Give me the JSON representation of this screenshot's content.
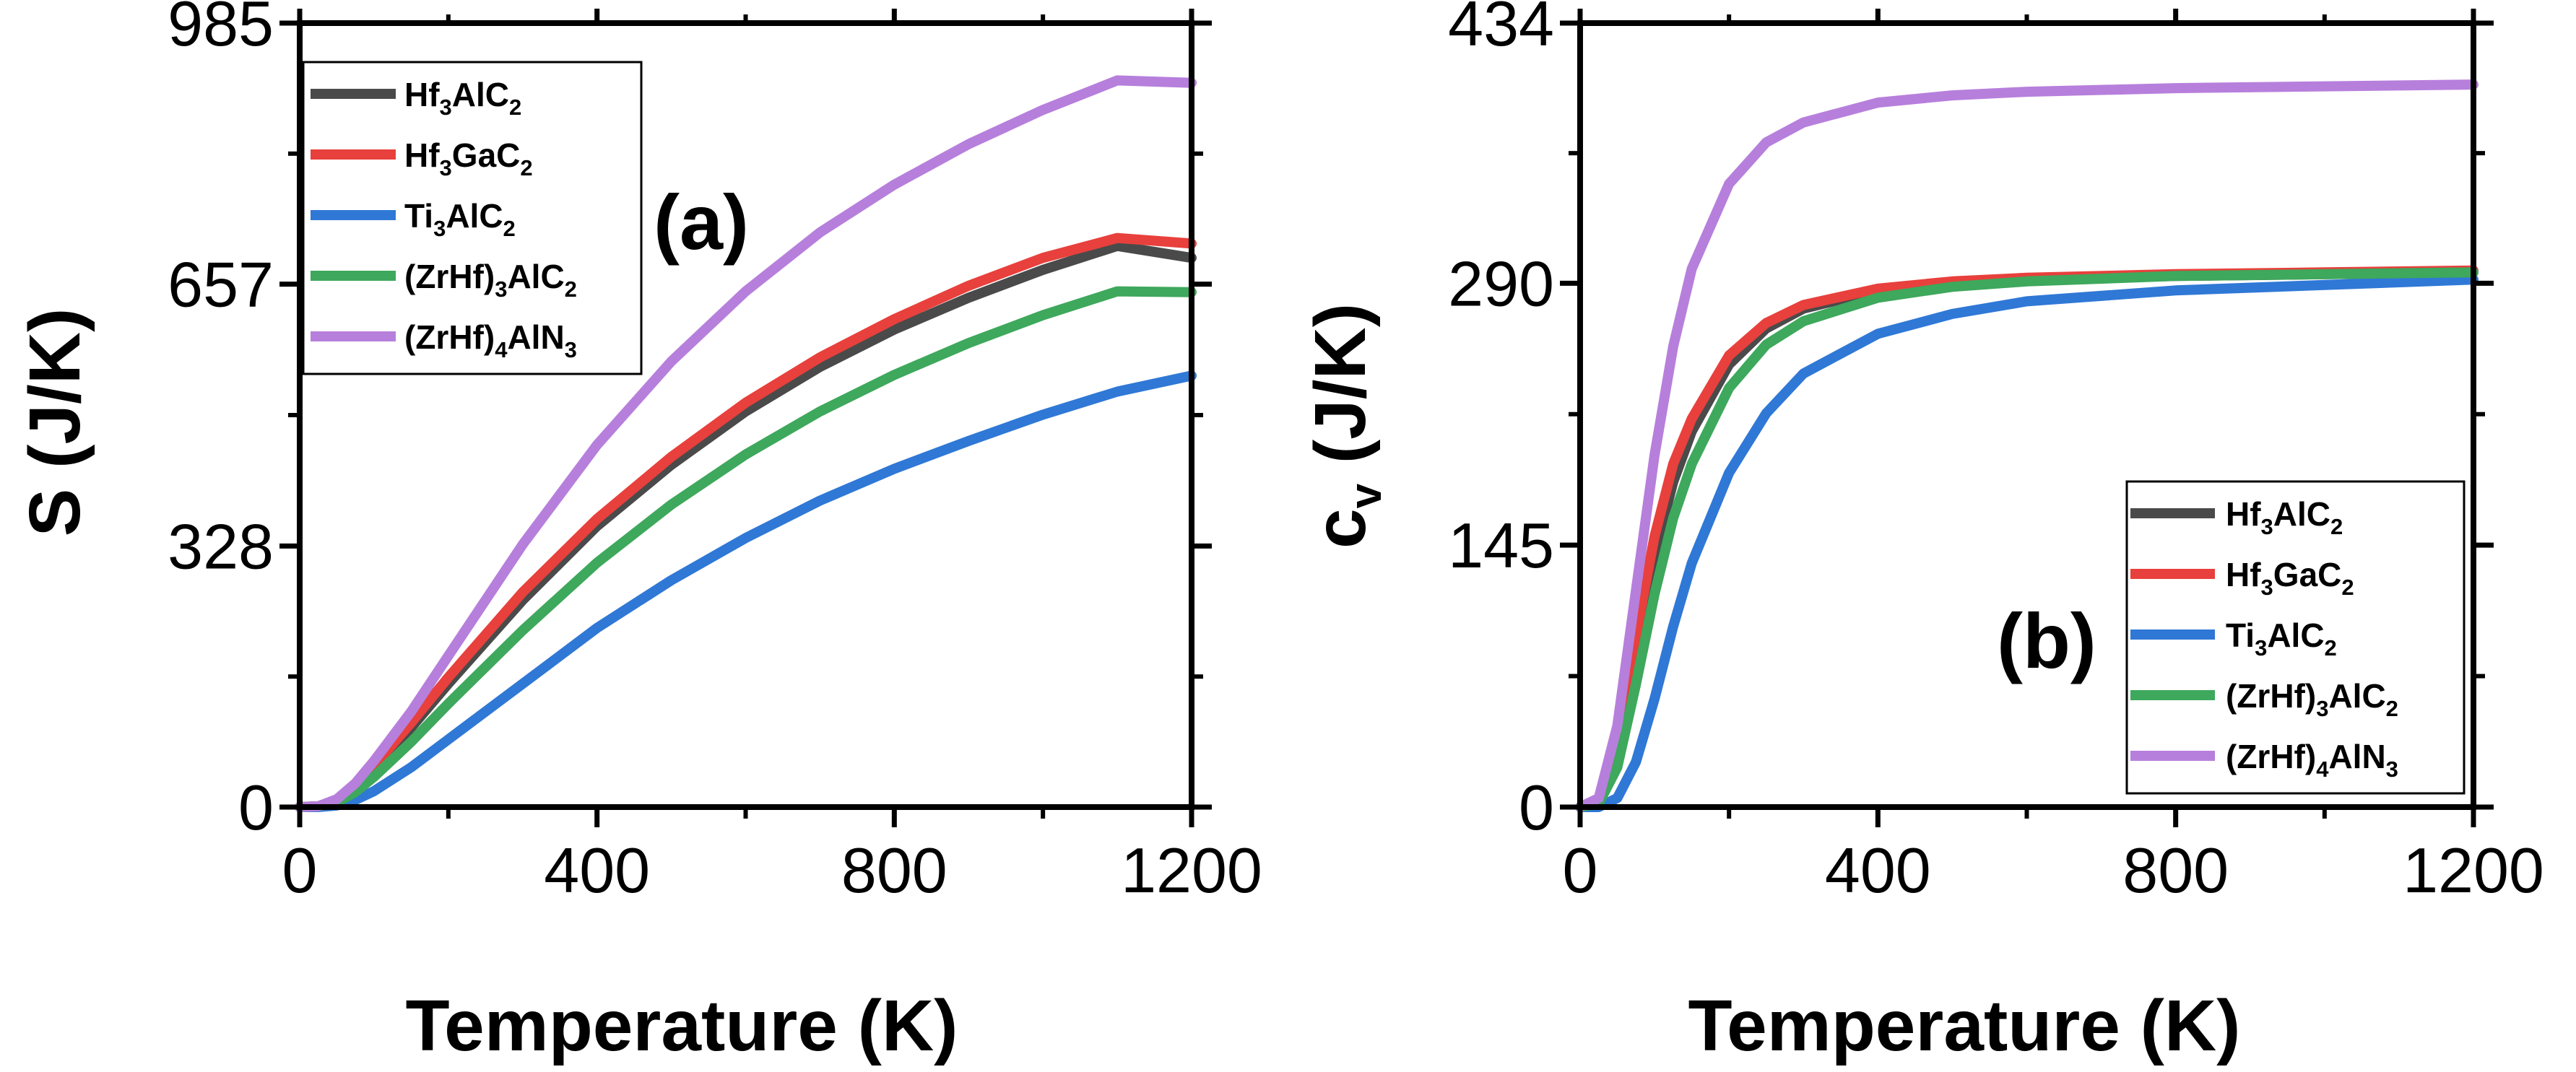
{
  "colors": {
    "Hf3AlC2": "#4a4a4a",
    "Hf3GaC2": "#e8403c",
    "Ti3AlC2": "#2f78d6",
    "ZrHf3AlC2": "#3ea85c",
    "ZrHf4AlN3": "#b77fdc"
  },
  "chart_data": [
    {
      "type": "line",
      "panel_label": "(a)",
      "xlabel": "Temperature (K)",
      "ylabel": "S (J/K)",
      "xlim": [
        0,
        1200
      ],
      "ylim": [
        0,
        985
      ],
      "x_ticks": [
        "0",
        "400",
        "800",
        "1200"
      ],
      "y_ticks": [
        "0",
        "328",
        "657",
        "985"
      ],
      "legend_position": "top-left",
      "x": [
        0,
        25,
        50,
        75,
        100,
        150,
        200,
        300,
        400,
        500,
        600,
        700,
        800,
        900,
        1000,
        1100,
        1200
      ],
      "series": [
        {
          "name": "Hf3AlC2",
          "legend": {
            "base1": "Hf",
            "sub1": "3",
            "base2": "AlC",
            "sub2": "2",
            "base3": "",
            "sub3": "",
            "tail": ""
          },
          "values": [
            0,
            1,
            8,
            25,
            48,
            100,
            155,
            260,
            353,
            430,
            497,
            553,
            600,
            640,
            675,
            705,
            690
          ]
        },
        {
          "name": "Hf3GaC2",
          "legend": {
            "base1": "Hf",
            "sub1": "3",
            "base2": "GaC",
            "sub2": "2",
            "base3": "",
            "sub3": "",
            "tail": ""
          },
          "values": [
            0,
            1,
            9,
            27,
            52,
            106,
            163,
            270,
            362,
            440,
            508,
            565,
            613,
            655,
            690,
            715,
            708
          ]
        },
        {
          "name": "Ti3AlC2",
          "legend": {
            "base1": "Ti",
            "sub1": "3",
            "base2": "AlC",
            "sub2": "2",
            "base3": "",
            "sub3": "",
            "tail": ""
          },
          "values": [
            0,
            0,
            2,
            9,
            20,
            50,
            85,
            155,
            225,
            285,
            338,
            385,
            425,
            460,
            493,
            522,
            542
          ]
        },
        {
          "name": "(ZrHf)3AlC2",
          "legend": {
            "base1": "(ZrHf)",
            "sub1": "3",
            "base2": "AlC",
            "sub2": "2",
            "base3": "",
            "sub3": "",
            "tail": ""
          },
          "values": [
            0,
            1,
            6,
            19,
            38,
            82,
            130,
            222,
            307,
            380,
            443,
            497,
            543,
            583,
            618,
            648,
            647
          ]
        },
        {
          "name": "(ZrHf)4AlN3",
          "legend": {
            "base1": "(ZrHf)",
            "sub1": "4",
            "base2": "AlN",
            "sub2": "3",
            "base3": "",
            "sub3": "",
            "tail": ""
          },
          "values": [
            0,
            1,
            10,
            30,
            58,
            120,
            190,
            330,
            455,
            560,
            648,
            722,
            782,
            833,
            876,
            913,
            910
          ]
        }
      ]
    },
    {
      "type": "line",
      "panel_label": "(b)",
      "xlabel": "Temperature (K)",
      "ylabel": "c",
      "ylabel_sub": "v",
      "ylabel_tail": " (J/K)",
      "xlim": [
        0,
        1200
      ],
      "ylim": [
        0,
        434
      ],
      "x_ticks": [
        "0",
        "400",
        "800",
        "1200"
      ],
      "y_ticks": [
        "0",
        "145",
        "290",
        "434"
      ],
      "legend_position": "bottom-right",
      "x": [
        0,
        25,
        50,
        75,
        100,
        125,
        150,
        200,
        250,
        300,
        400,
        500,
        600,
        800,
        1000,
        1200
      ],
      "series": [
        {
          "name": "Hf3AlC2",
          "legend": {
            "base1": "Hf",
            "sub1": "3",
            "base2": "AlC",
            "sub2": "2",
            "base3": "",
            "sub3": "",
            "tail": ""
          },
          "values": [
            0,
            3,
            30,
            85,
            140,
            180,
            208,
            245,
            265,
            276,
            286,
            290,
            292,
            294,
            295,
            296
          ]
        },
        {
          "name": "Hf3GaC2",
          "legend": {
            "base1": "Hf",
            "sub1": "3",
            "base2": "GaC",
            "sub2": "2",
            "base3": "",
            "sub3": "",
            "tail": ""
          },
          "values": [
            0,
            4,
            35,
            95,
            150,
            190,
            215,
            250,
            268,
            278,
            287,
            291,
            293,
            295,
            296,
            297
          ]
        },
        {
          "name": "Ti3AlC2",
          "legend": {
            "base1": "Ti",
            "sub1": "3",
            "base2": "AlC",
            "sub2": "2",
            "base3": "",
            "sub3": "",
            "tail": ""
          },
          "values": [
            0,
            0,
            5,
            25,
            60,
            100,
            135,
            185,
            218,
            240,
            262,
            273,
            280,
            286,
            289,
            292
          ]
        },
        {
          "name": "(ZrHf)3AlC2",
          "legend": {
            "base1": "(ZrHf)",
            "sub1": "3",
            "base2": "AlC",
            "sub2": "2",
            "base3": "",
            "sub3": "",
            "tail": ""
          },
          "values": [
            0,
            2,
            22,
            68,
            118,
            160,
            190,
            232,
            256,
            269,
            282,
            288,
            291,
            294,
            295,
            296
          ]
        },
        {
          "name": "(ZrHf)4AlN3",
          "legend": {
            "base1": "(ZrHf)",
            "sub1": "4",
            "base2": "AlN",
            "sub2": "3",
            "base3": "",
            "sub3": "",
            "tail": ""
          },
          "values": [
            0,
            5,
            45,
            120,
            195,
            255,
            298,
            345,
            368,
            379,
            390,
            394,
            396,
            398,
            399,
            400
          ]
        }
      ]
    }
  ]
}
